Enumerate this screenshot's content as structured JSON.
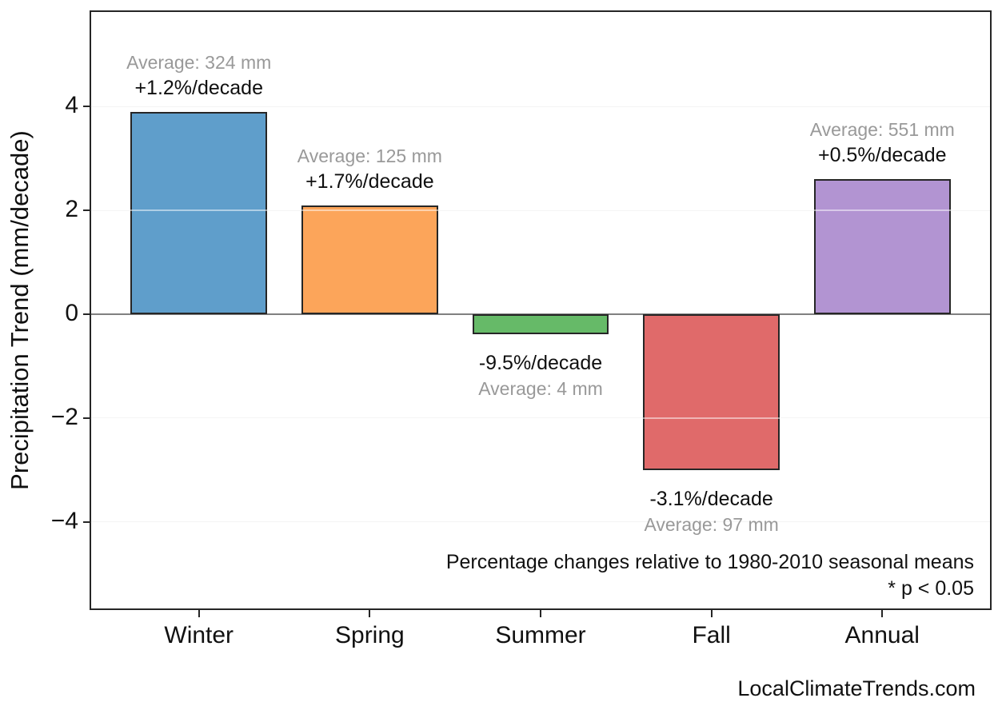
{
  "figure": {
    "watermark": "LocalClimateTrends.com"
  },
  "chart_data": {
    "type": "bar",
    "title": "",
    "xlabel": "",
    "ylabel": "Precipitation Trend (mm/decade)",
    "categories": [
      "Winter",
      "Spring",
      "Summer",
      "Fall",
      "Annual"
    ],
    "values": [
      3.9,
      2.1,
      -0.38,
      -3.0,
      2.6
    ],
    "avg_mm": [
      324,
      125,
      4,
      97,
      551
    ],
    "pct_per_decade": [
      1.2,
      1.7,
      -9.5,
      -3.1,
      0.5
    ],
    "pct_labels": [
      "+1.2%/decade",
      "+1.7%/decade",
      "-9.5%/decade",
      "-3.1%/decade",
      "+0.5%/decade"
    ],
    "avg_labels": [
      "Average: 324 mm",
      "Average: 125 mm",
      "Average: 4 mm",
      "Average: 97 mm",
      "Average: 551 mm"
    ],
    "bar_colors": [
      "#5F9ECB",
      "#FCA55A",
      "#66BA68",
      "#E06A6A",
      "#B294D2"
    ],
    "bar_edge_color": "#262626",
    "yticks": [
      4,
      2,
      0,
      -2,
      -4
    ],
    "ytick_labels": [
      "4",
      "2",
      "0",
      "−2",
      "−4"
    ],
    "ylim": [
      -5.7,
      5.85
    ],
    "grid": "horizontal",
    "grid_color": "#e9e9e9",
    "zero_line_color": "#808080",
    "legend": "none",
    "footnote_line1": "Percentage changes relative to 1980-2010 seasonal means",
    "footnote_line2": "* p < 0.05"
  }
}
